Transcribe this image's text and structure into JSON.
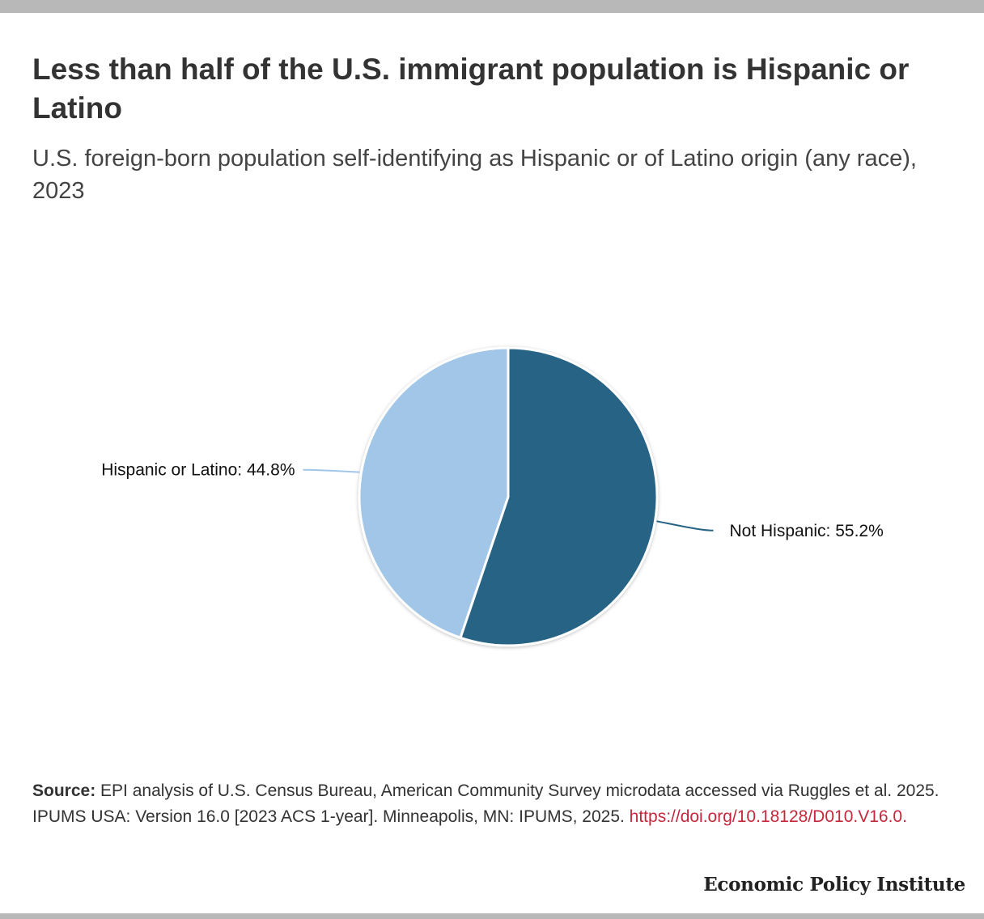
{
  "title": "Less than half of the U.S. immigrant population is Hispanic or Latino",
  "subtitle": "U.S. foreign-born population self-identifying as Hispanic or of Latino origin (any race), 2023",
  "chart_data": {
    "type": "pie",
    "title": "Less than half of the U.S. immigrant population is Hispanic or Latino",
    "subtitle": "U.S. foreign-born population self-identifying as Hispanic or of Latino origin (any race), 2023",
    "unit": "%",
    "slices": [
      {
        "label": "Not Hispanic",
        "value": 55.2,
        "display": "Not Hispanic: 55.2%",
        "color": "#266385"
      },
      {
        "label": "Hispanic or Latino",
        "value": 44.8,
        "display": "Hispanic or Latino: 44.8%",
        "color": "#a1c6e7"
      }
    ],
    "legend": "none"
  },
  "source": {
    "label": "Source:",
    "text": " EPI analysis of U.S. Census Bureau, American Community Survey microdata accessed via Ruggles et al. 2025. IPUMS USA: Version 16.0 [2023 ACS 1-year]. Minneapolis, MN: IPUMS, 2025. ",
    "link_text": "https://doi.org/10.18128/D010.V16.0.",
    "link_color": "#c5283d"
  },
  "branding": {
    "logo_text": "Economic Policy Institute"
  }
}
